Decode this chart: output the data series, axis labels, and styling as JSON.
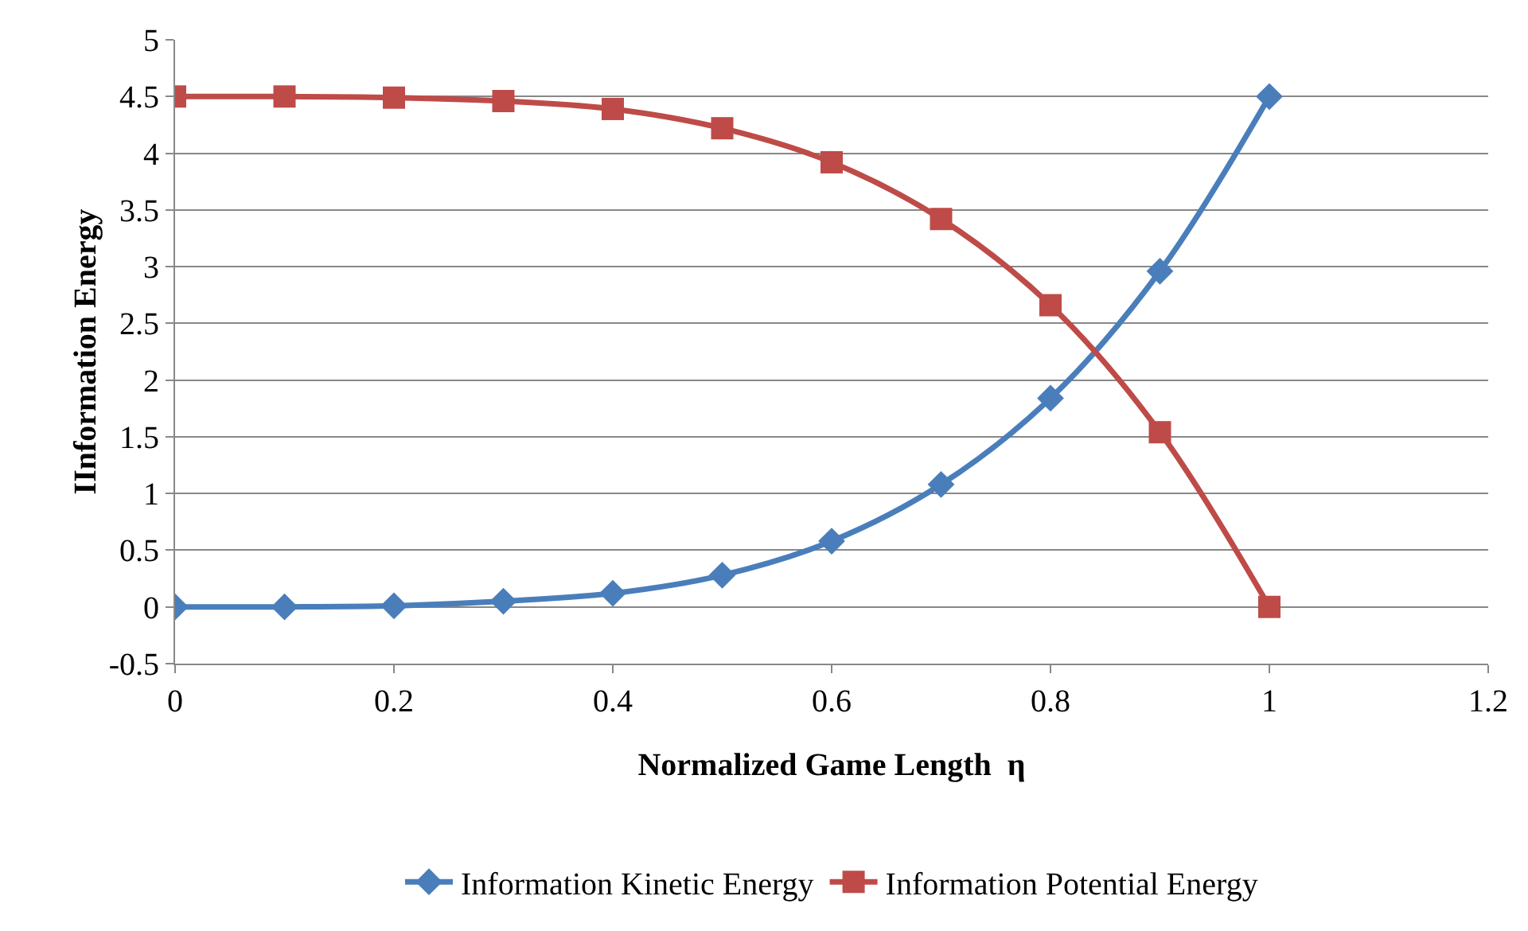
{
  "chart_data": {
    "type": "line",
    "xlabel": "Normalized Game Length  η",
    "ylabel": "IInformation Energy",
    "x": [
      0,
      0.1,
      0.2,
      0.3,
      0.4,
      0.5,
      0.6,
      0.7,
      0.8,
      0.9,
      1
    ],
    "series": [
      {
        "name": "Information Kinetic Energy",
        "color": "#4a7ebb",
        "marker": "diamond",
        "values": [
          0,
          0,
          0.01,
          0.05,
          0.12,
          0.28,
          0.58,
          1.08,
          1.84,
          2.96,
          4.5
        ]
      },
      {
        "name": "Information Potential Energy",
        "color": "#be4b48",
        "marker": "square",
        "values": [
          4.5,
          4.5,
          4.49,
          4.46,
          4.39,
          4.22,
          3.92,
          3.42,
          2.66,
          1.54,
          0
        ]
      }
    ],
    "xlim": [
      0,
      1.2
    ],
    "xticks": [
      0,
      0.2,
      0.4,
      0.6,
      0.8,
      1,
      1.2
    ],
    "ylim": [
      -0.5,
      5
    ],
    "yticks": [
      -0.5,
      0,
      0.5,
      1,
      1.5,
      2,
      2.5,
      3,
      3.5,
      4,
      4.5,
      5
    ],
    "grid": "y",
    "legend": "bottom",
    "line_style": "solid"
  }
}
